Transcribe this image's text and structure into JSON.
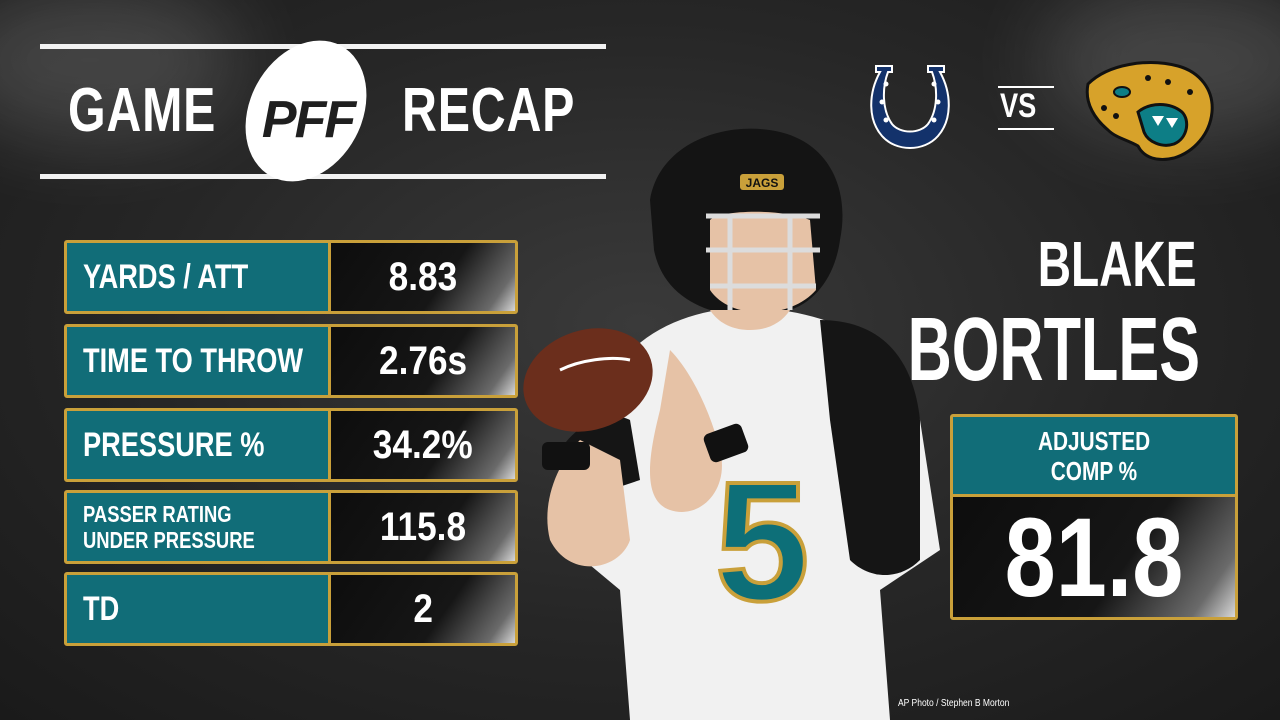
{
  "header": {
    "title_left": "GAME",
    "brand": "PFF",
    "title_right": "RECAP"
  },
  "matchup": {
    "vs": "VS",
    "team_left_icon": "colts-horseshoe-logo",
    "team_right_icon": "jaguars-head-logo"
  },
  "stats": [
    {
      "label": "YARDS / ATT",
      "value": "8.83"
    },
    {
      "label": "TIME TO THROW",
      "value": "2.76s"
    },
    {
      "label": "PRESSURE %",
      "value": "34.2%"
    },
    {
      "label": "PASSER RATING",
      "label2": "UNDER PRESSURE",
      "value": "115.8"
    },
    {
      "label": "TD",
      "value": "2"
    }
  ],
  "player": {
    "first_name": "BLAKE",
    "last_name": "BORTLES",
    "jersey_number": "5",
    "helmet_text": "JAGS"
  },
  "highlight": {
    "label_line1": "ADJUSTED",
    "label_line2": "COMP %",
    "value": "81.8"
  },
  "photo_credit": "AP Photo / Stephen B Morton",
  "colors": {
    "teal": "#116d78",
    "gold_border": "#c9a03a",
    "colts_blue": "#13326b",
    "background": "#262626"
  }
}
